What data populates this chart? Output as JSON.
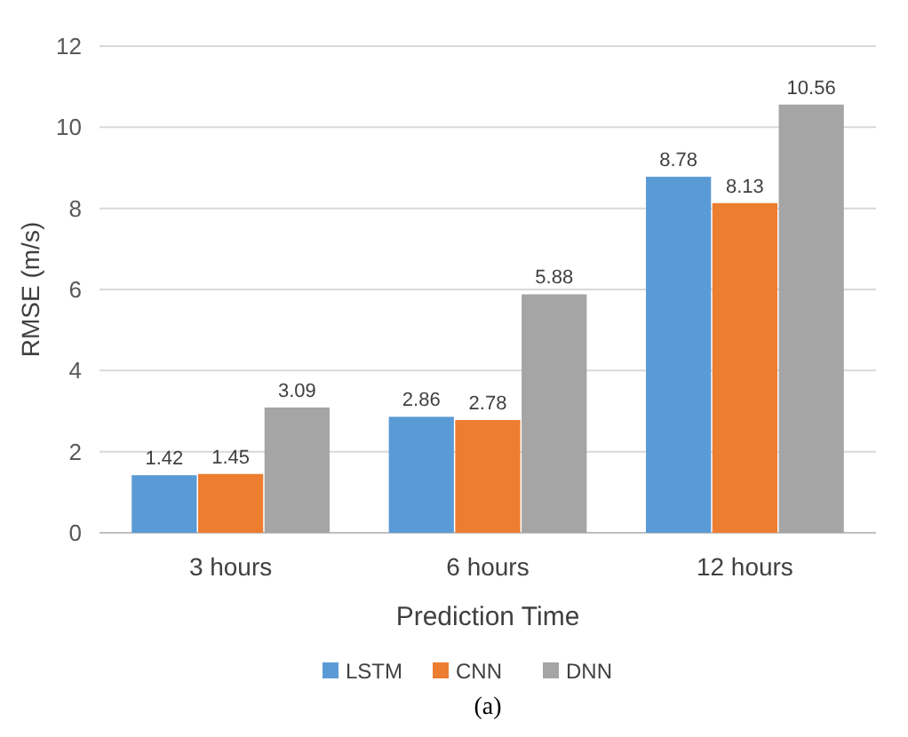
{
  "chart_data": {
    "type": "bar",
    "xlabel": "Prediction Time",
    "ylabel": "RMSE  (m/s)",
    "categories": [
      "3 hours",
      "6 hours",
      "12 hours"
    ],
    "series": [
      {
        "name": "LSTM",
        "color": "#5b9bd5",
        "values": [
          1.42,
          2.86,
          8.78
        ]
      },
      {
        "name": "CNN",
        "color": "#ed7d31",
        "values": [
          1.45,
          2.78,
          8.13
        ]
      },
      {
        "name": "DNN",
        "color": "#a5a5a5",
        "values": [
          3.09,
          5.88,
          10.56
        ]
      }
    ],
    "ylim": [
      0,
      12
    ],
    "yticks": [
      0,
      2,
      4,
      6,
      8,
      10,
      12
    ],
    "grid": "y",
    "legend": "bottom",
    "data_labels": true,
    "annotations": [
      "(a)"
    ]
  }
}
